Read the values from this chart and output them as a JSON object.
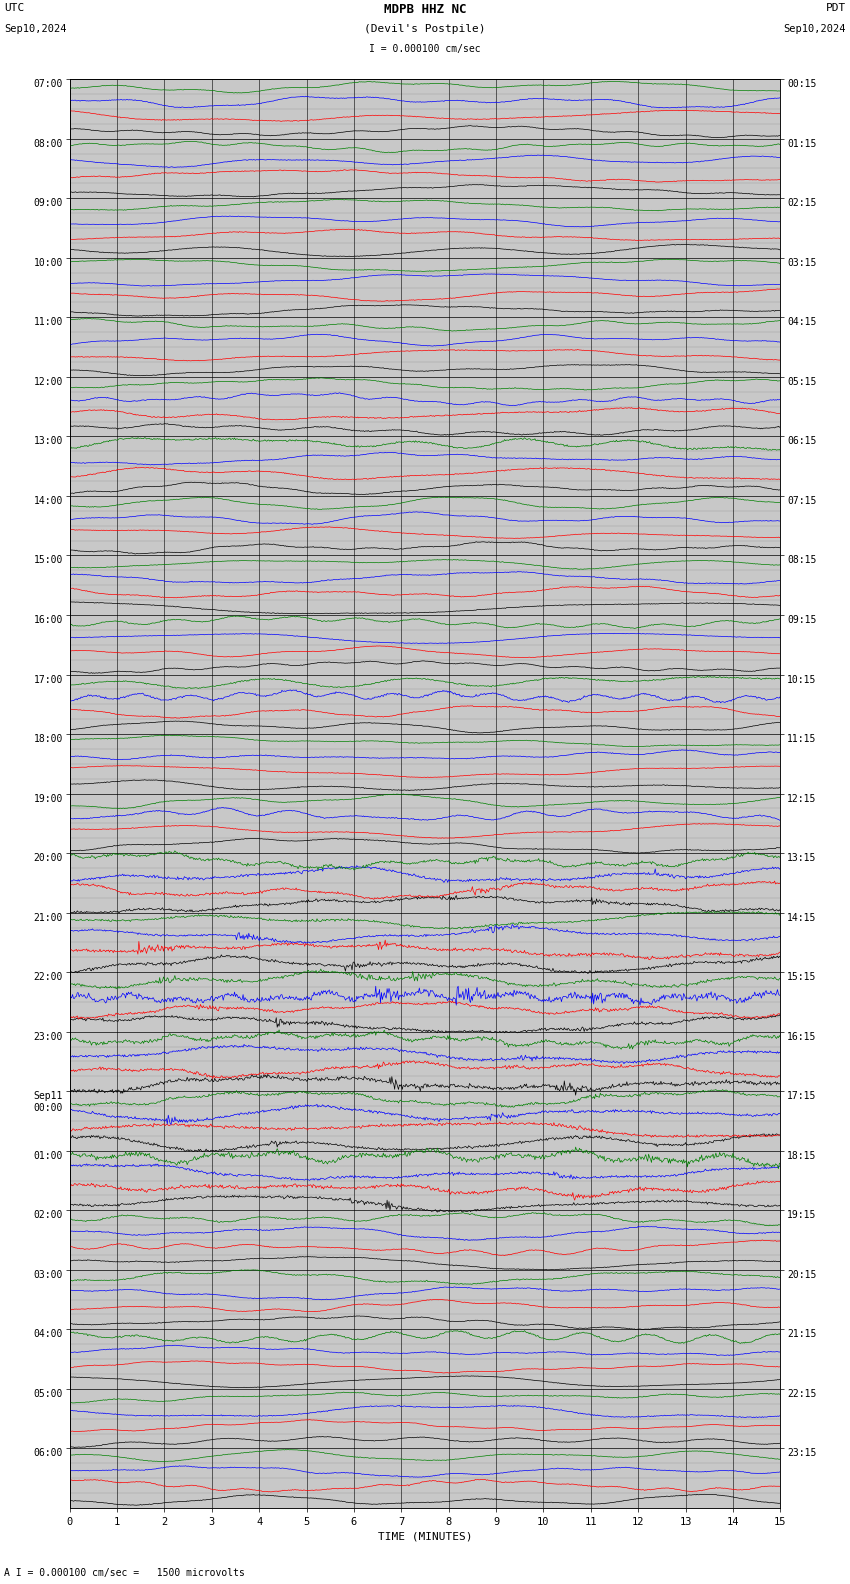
{
  "title_line1": "MDPB HHZ NC",
  "title_line2": "(Devil's Postpile)",
  "scale_label": "I = 0.000100 cm/sec",
  "footer_text": "A I = 0.000100 cm/sec =   1500 microvolts",
  "utc_label": "UTC",
  "pdt_label": "PDT",
  "date_left": "Sep10,2024",
  "date_right": "Sep10,2024",
  "xlabel": "TIME (MINUTES)",
  "left_times": [
    "07:00",
    "08:00",
    "09:00",
    "10:00",
    "11:00",
    "12:00",
    "13:00",
    "14:00",
    "15:00",
    "16:00",
    "17:00",
    "18:00",
    "19:00",
    "20:00",
    "21:00",
    "22:00",
    "23:00",
    "Sep11\n00:00",
    "01:00",
    "02:00",
    "03:00",
    "04:00",
    "05:00",
    "06:00"
  ],
  "right_times": [
    "00:15",
    "01:15",
    "02:15",
    "03:15",
    "04:15",
    "05:15",
    "06:15",
    "07:15",
    "08:15",
    "09:15",
    "10:15",
    "11:15",
    "12:15",
    "13:15",
    "14:15",
    "15:15",
    "16:15",
    "17:15",
    "18:15",
    "19:15",
    "20:15",
    "21:15",
    "22:15",
    "23:15"
  ],
  "n_rows": 24,
  "minutes_per_row": 15,
  "colors": [
    "black",
    "red",
    "blue",
    "green"
  ],
  "bg_color": "#c8c8c8",
  "line_width": 0.5,
  "seed": 42
}
